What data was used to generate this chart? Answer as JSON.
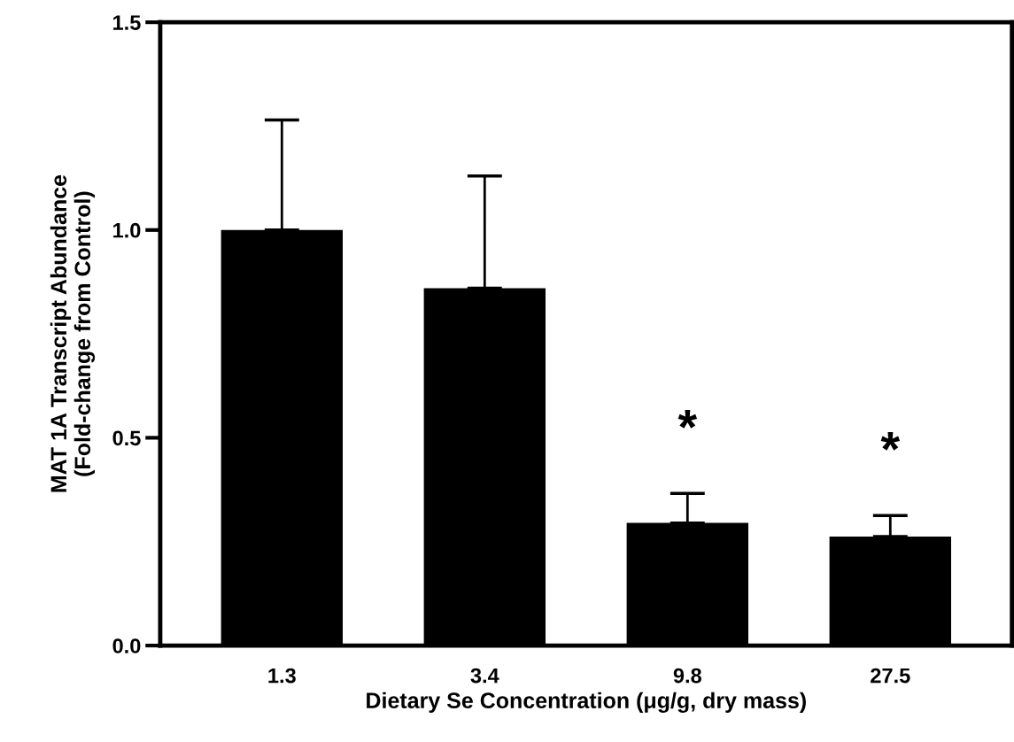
{
  "chart_data": {
    "type": "bar",
    "xlabel": "Dietary Se Concentration (μg/g, dry mass)",
    "ylabel": "MAT 1A Transcript Abundance\n(Fold-change from Control)",
    "categories": [
      "1.3",
      "3.4",
      "9.8",
      "27.5"
    ],
    "values": [
      1.0,
      0.86,
      0.295,
      0.262
    ],
    "color": "#000000",
    "errors": [
      [
        1.0,
        1.265
      ],
      [
        0.86,
        1.13
      ],
      [
        0.295,
        0.366
      ],
      [
        0.262,
        0.313
      ]
    ],
    "ylim": [
      0,
      1.5
    ],
    "yticks": [
      {
        "value": 0,
        "label": "0.0"
      },
      {
        "value": 0.5,
        "label": "0.5"
      },
      {
        "value": 1.0,
        "label": "1.0"
      },
      {
        "value": 1.5,
        "label": "1.5"
      }
    ],
    "annotations": [
      "*",
      "*"
    ],
    "grid": false,
    "legend": false
  }
}
